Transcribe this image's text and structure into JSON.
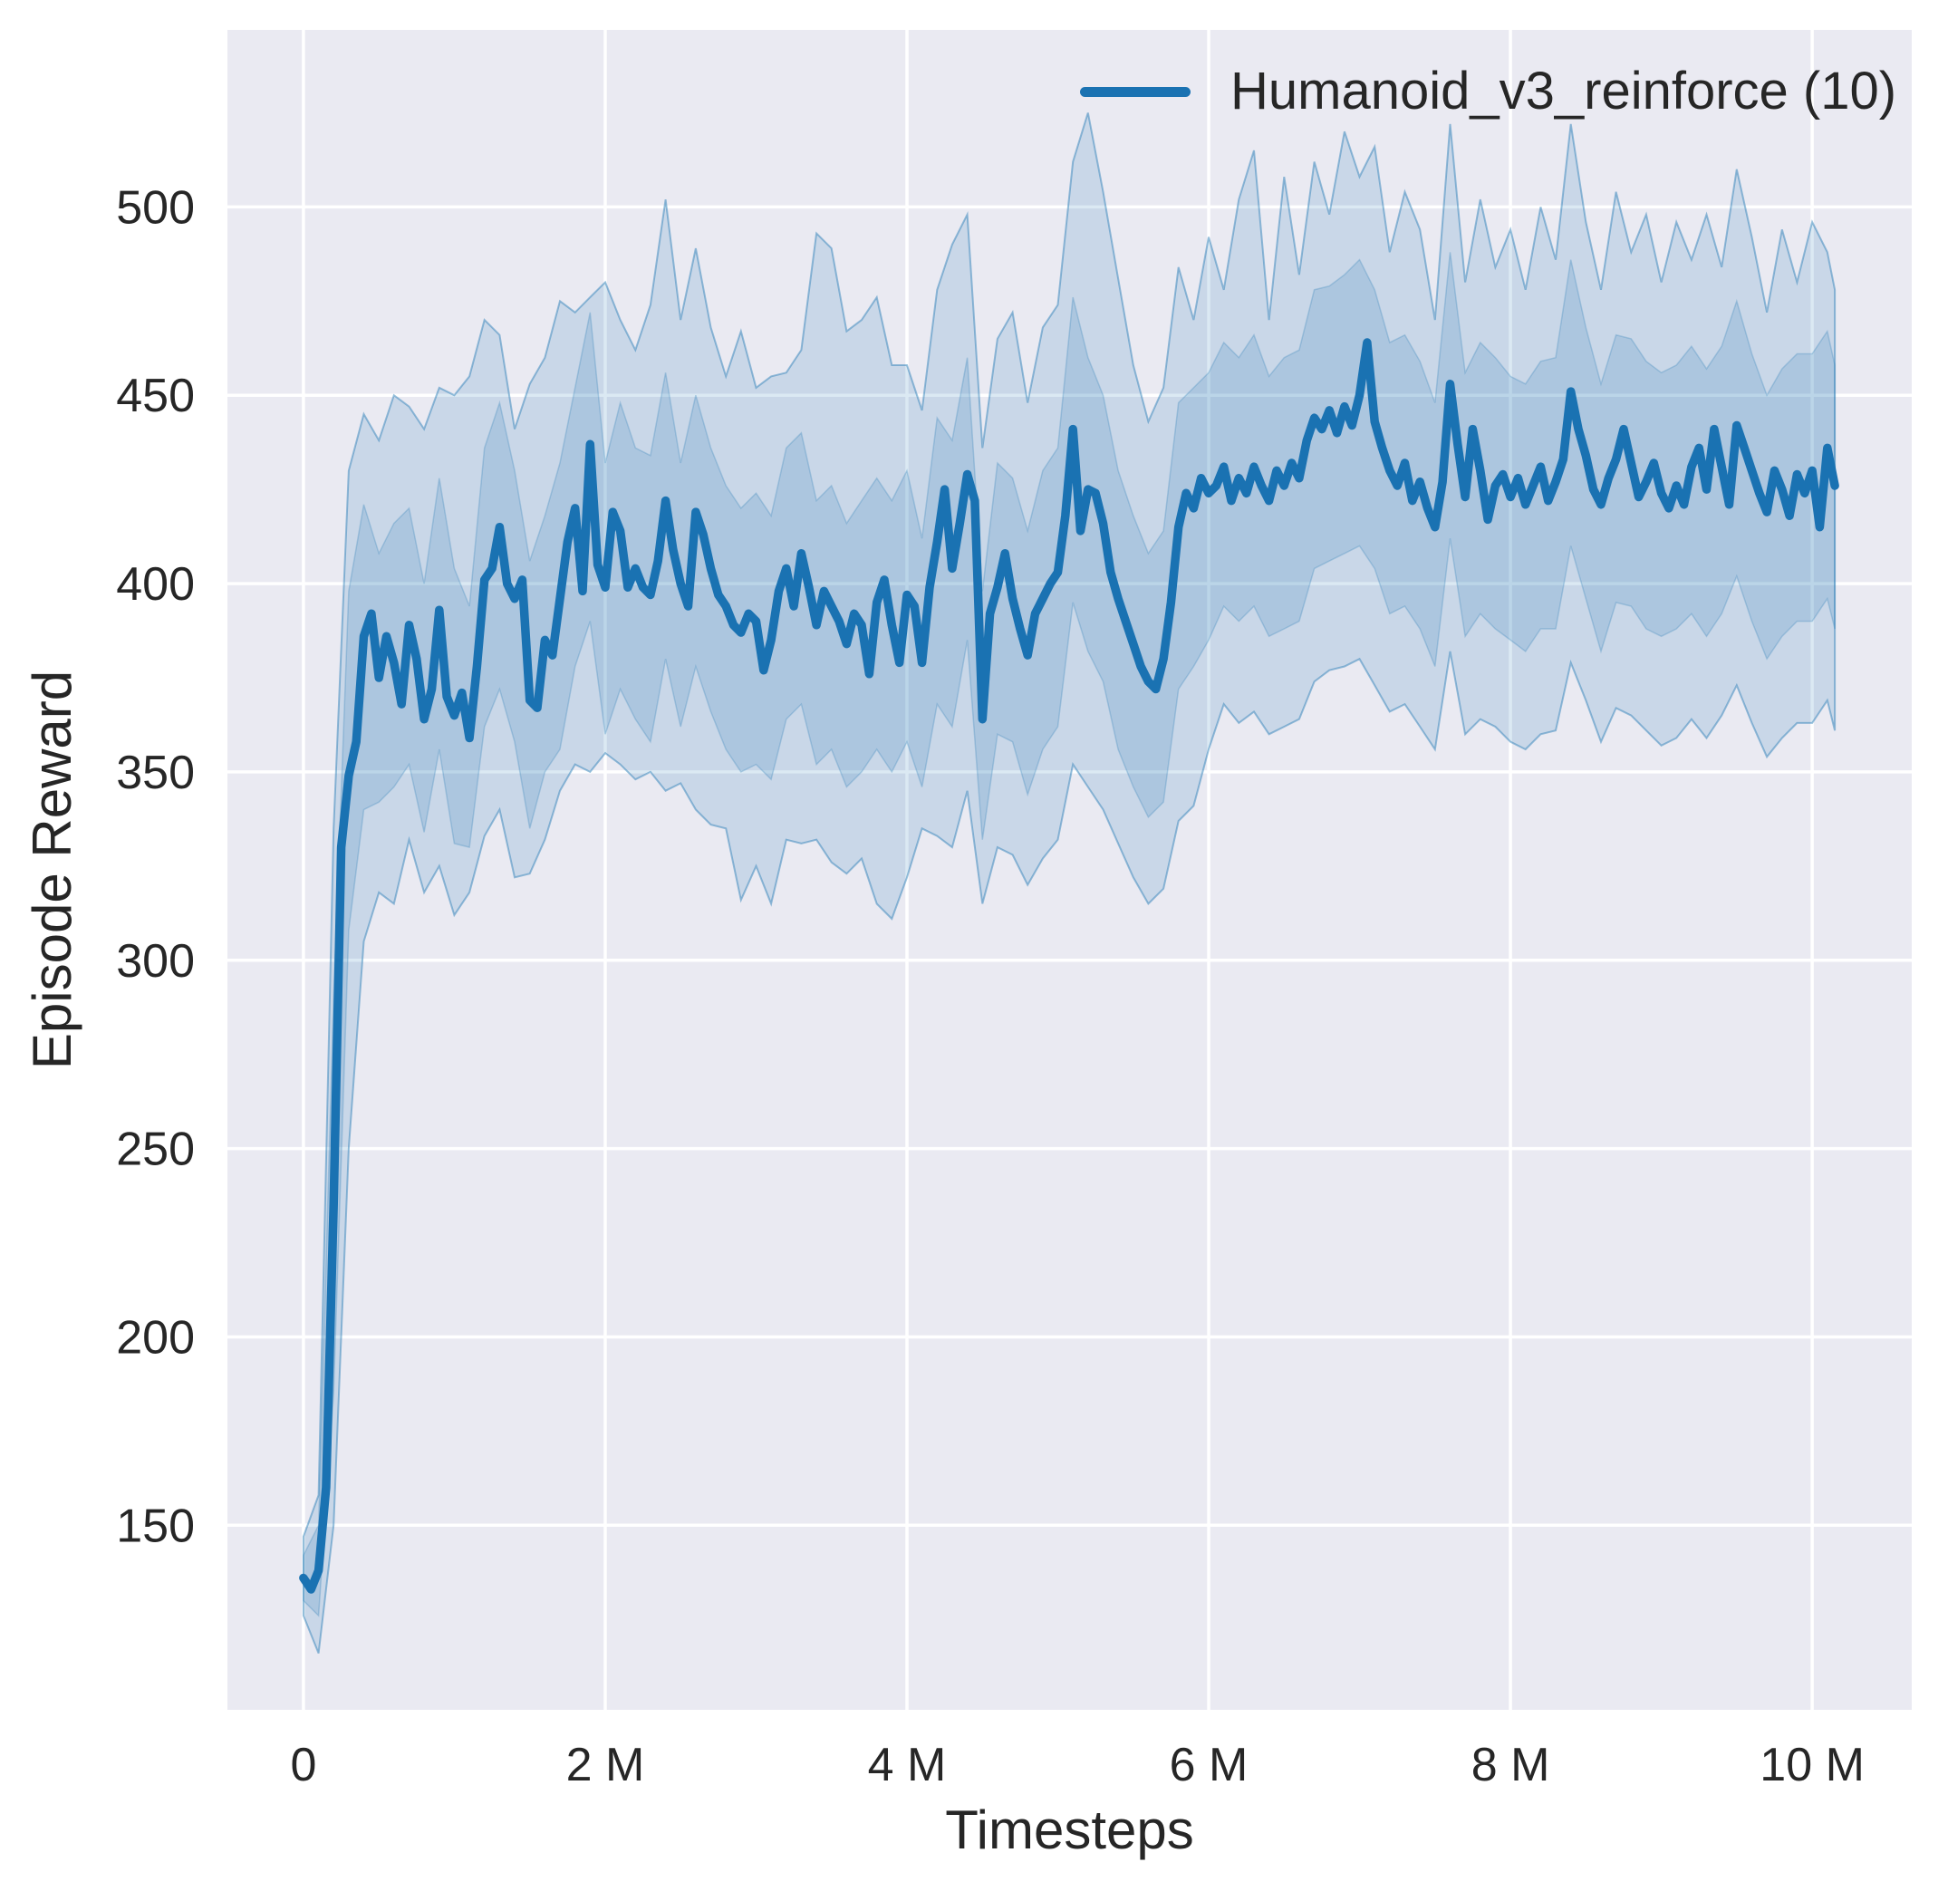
{
  "figure": {
    "background": "#ffffff",
    "panel_background": "#eaeaf2",
    "grid_color": "#ffffff",
    "text_color": "#262626"
  },
  "legend": {
    "label": "Humanoid_v3_reinforce (10)",
    "line_color": "#1a72b2"
  },
  "chart_data": {
    "type": "line",
    "title": "",
    "xlabel": "Timesteps",
    "ylabel": "Episode Reward",
    "x_unit": "timesteps (millions)",
    "grid": true,
    "legend_position": "upper right",
    "xlim_M": [
      -0.504,
      10.66
    ],
    "ylim": [
      101,
      547
    ],
    "xticks_M": [
      0,
      2,
      4,
      6,
      8,
      10
    ],
    "xtick_labels": [
      "0",
      "2 M",
      "4 M",
      "6 M",
      "8 M",
      "10 M"
    ],
    "yticks": [
      150,
      200,
      250,
      300,
      350,
      400,
      450,
      500
    ],
    "series": [
      {
        "name": "Humanoid_v3_reinforce (10)",
        "color": "#1a72b2",
        "line_width": 9.5,
        "t_start_M": 0,
        "t_step_M": 0.05,
        "mean": [
          136,
          133,
          138,
          160,
          235,
          330,
          349,
          358,
          386,
          392,
          375,
          386,
          379,
          368,
          389,
          380,
          364,
          372,
          393,
          370,
          365,
          371,
          359,
          378,
          401,
          404,
          415,
          400,
          396,
          401,
          369,
          367,
          385,
          381,
          396,
          411,
          420,
          398,
          437,
          405,
          399,
          419,
          414,
          399,
          404,
          399,
          397,
          406,
          422,
          409,
          400,
          394,
          419,
          413,
          404,
          397,
          394,
          389,
          387,
          392,
          390,
          377,
          385,
          398,
          404,
          394,
          408,
          399,
          389,
          398,
          394,
          390,
          384,
          392,
          389,
          376,
          395,
          401,
          389,
          379,
          397,
          394,
          379,
          399,
          411,
          425,
          404,
          416,
          429,
          422,
          364,
          392,
          399,
          408,
          396,
          388,
          381,
          392,
          396,
          400,
          403,
          418,
          441,
          414,
          425,
          424,
          416,
          403,
          396,
          390,
          384,
          378,
          374,
          372,
          380,
          395,
          415,
          424,
          420,
          428,
          424,
          426,
          431,
          422,
          428,
          424,
          431,
          426,
          422,
          430,
          426,
          432,
          428,
          438,
          444,
          441,
          446,
          440,
          447,
          442,
          450,
          464,
          443,
          436,
          430,
          426,
          432,
          422,
          427,
          420,
          415,
          427,
          453,
          437,
          423,
          441,
          430,
          417,
          426,
          429,
          423,
          428,
          421,
          426,
          431,
          422,
          427,
          433,
          451,
          441,
          434,
          425,
          421,
          428,
          433,
          441,
          432,
          423,
          427,
          432,
          424,
          420,
          426,
          421,
          431,
          436,
          425,
          441,
          431,
          421,
          442,
          436,
          430,
          424,
          419,
          430,
          425,
          418,
          429,
          424,
          430,
          415,
          436,
          426
        ]
      }
    ],
    "bands": {
      "color": "#1f77b4",
      "outer_opacity": 0.16,
      "inner_opacity": 0.17,
      "t_step_M": 0.1,
      "t_last_M": 10.15,
      "outer_low": [
        126,
        116,
        150,
        250,
        305,
        318,
        315,
        332,
        318,
        325,
        312,
        318,
        333,
        340,
        322,
        323,
        332,
        345,
        352,
        350,
        355,
        352,
        348,
        350,
        345,
        347,
        340,
        336,
        335,
        316,
        325,
        315,
        332,
        331,
        332,
        326,
        323,
        327,
        315,
        311,
        322,
        335,
        333,
        330,
        345,
        315,
        330,
        328,
        320,
        327,
        332,
        352,
        346,
        340,
        331,
        322,
        315,
        319,
        337,
        341,
        356,
        368,
        363,
        366,
        360,
        362,
        364,
        374,
        377,
        378,
        380,
        373,
        366,
        368,
        362,
        356,
        382,
        360,
        364,
        362,
        358,
        356,
        360,
        361,
        379,
        369,
        358,
        367,
        365,
        361,
        357,
        359,
        364,
        359,
        365,
        373,
        363,
        354,
        359,
        363,
        363,
        369,
        361
      ],
      "inner_low": [
        130,
        126,
        185,
        308,
        340,
        342,
        346,
        352,
        334,
        356,
        331,
        330,
        362,
        372,
        358,
        335,
        350,
        356,
        378,
        390,
        360,
        372,
        364,
        358,
        380,
        362,
        378,
        366,
        356,
        350,
        352,
        348,
        364,
        368,
        352,
        356,
        346,
        350,
        356,
        350,
        358,
        346,
        368,
        362,
        385,
        332,
        360,
        358,
        344,
        356,
        362,
        395,
        382,
        374,
        356,
        346,
        338,
        342,
        372,
        378,
        385,
        394,
        390,
        394,
        386,
        388,
        390,
        404,
        406,
        408,
        410,
        404,
        392,
        394,
        388,
        378,
        412,
        386,
        392,
        388,
        385,
        382,
        388,
        388,
        410,
        396,
        382,
        395,
        394,
        388,
        386,
        388,
        392,
        386,
        392,
        402,
        390,
        380,
        386,
        390,
        390,
        396,
        388
      ],
      "inner_high": [
        142,
        150,
        290,
        398,
        421,
        408,
        416,
        420,
        400,
        428,
        404,
        394,
        436,
        448,
        430,
        406,
        418,
        432,
        452,
        472,
        432,
        448,
        436,
        434,
        456,
        432,
        450,
        436,
        426,
        420,
        424,
        418,
        436,
        440,
        422,
        426,
        416,
        422,
        428,
        422,
        430,
        412,
        444,
        438,
        460,
        398,
        432,
        428,
        414,
        430,
        436,
        476,
        460,
        450,
        430,
        418,
        408,
        414,
        448,
        452,
        456,
        464,
        460,
        466,
        455,
        460,
        462,
        478,
        479,
        482,
        486,
        478,
        464,
        466,
        459,
        448,
        488,
        456,
        464,
        460,
        455,
        453,
        459,
        460,
        486,
        468,
        453,
        466,
        465,
        459,
        456,
        458,
        463,
        457,
        463,
        475,
        461,
        450,
        457,
        461,
        461,
        467,
        458
      ],
      "outer_high": [
        147,
        158,
        335,
        430,
        445,
        438,
        450,
        447,
        441,
        452,
        450,
        455,
        470,
        466,
        441,
        453,
        460,
        475,
        472,
        476,
        480,
        470,
        462,
        474,
        502,
        470,
        489,
        468,
        455,
        467,
        452,
        455,
        456,
        462,
        493,
        489,
        467,
        470,
        476,
        458,
        458,
        446,
        478,
        490,
        498,
        436,
        465,
        472,
        448,
        468,
        474,
        512,
        525,
        504,
        481,
        458,
        443,
        452,
        484,
        470,
        492,
        478,
        502,
        515,
        470,
        508,
        482,
        512,
        498,
        520,
        508,
        516,
        488,
        504,
        494,
        470,
        522,
        480,
        502,
        484,
        494,
        478,
        500,
        486,
        522,
        496,
        478,
        504,
        488,
        498,
        480,
        496,
        486,
        498,
        484,
        510,
        492,
        472,
        494,
        480,
        496,
        488,
        478
      ]
    }
  }
}
